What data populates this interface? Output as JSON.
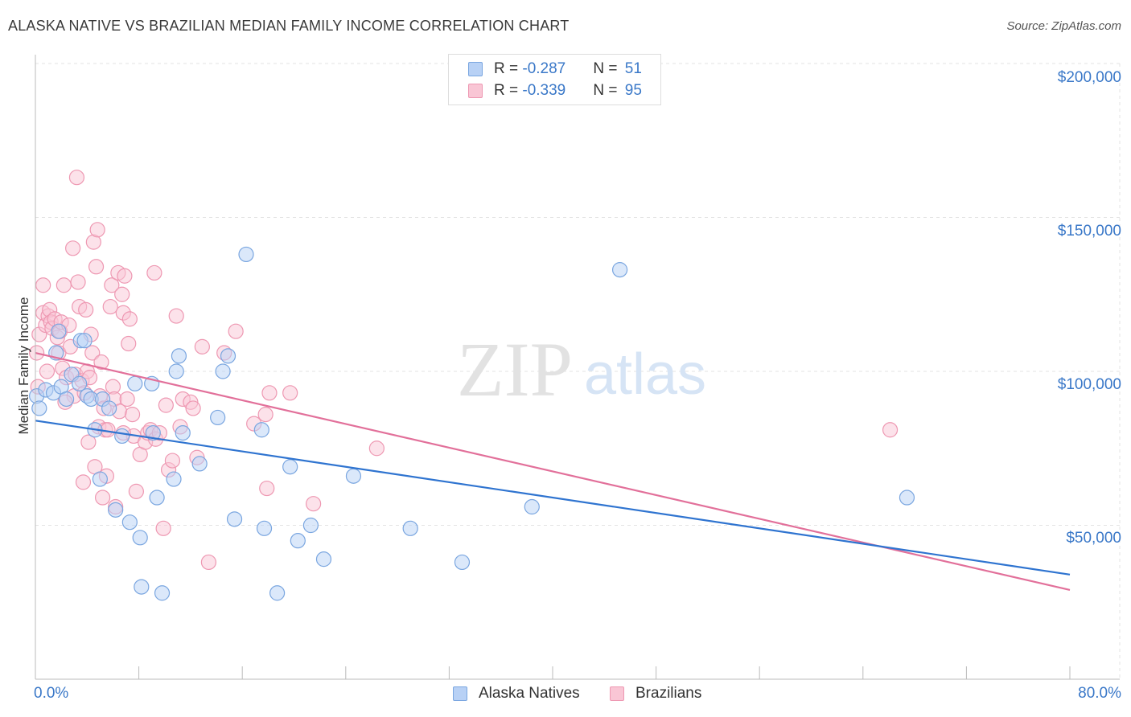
{
  "header": {
    "title": "ALASKA NATIVE VS BRAZILIAN MEDIAN FAMILY INCOME CORRELATION CHART",
    "source": "Source: ZipAtlas.com"
  },
  "watermark": {
    "part1": "ZIP",
    "part2": "atlas"
  },
  "legend": {
    "rows": [
      {
        "r_label": "R = ",
        "r_value": "-0.287",
        "n_label": "N = ",
        "n_value": "51"
      },
      {
        "r_label": "R = ",
        "r_value": "-0.339",
        "n_label": "N = ",
        "n_value": "95"
      }
    ],
    "bottom": [
      "Alaska Natives",
      "Brazilians"
    ]
  },
  "axes": {
    "ylabel": "Median Family Income",
    "yticks": [
      "$200,000",
      "$150,000",
      "$100,000",
      "$50,000"
    ],
    "xticks": [
      "0.0%",
      "80.0%"
    ]
  },
  "colors": {
    "blue_fill": "#b8d1f5",
    "blue_stroke": "#7aa6e0",
    "blue_line": "#2f74d0",
    "pink_fill": "#f9c6d5",
    "pink_stroke": "#ee98b2",
    "pink_line": "#e2709a",
    "tick_text": "#3a78c8",
    "grid": "#e3e3e3"
  },
  "chart_data": {
    "type": "scatter",
    "title": "ALASKA NATIVE VS BRAZILIAN MEDIAN FAMILY INCOME CORRELATION CHART",
    "xlabel": "",
    "ylabel": "Median Family Income",
    "xlim": [
      0,
      80
    ],
    "ylim": [
      0,
      200000
    ],
    "grid": true,
    "legend_position": "top-center",
    "series": [
      {
        "name": "Alaska Natives",
        "color": "#b8d1f5",
        "r": -0.287,
        "n": 51,
        "trend": [
          [
            0,
            84000
          ],
          [
            80,
            34000
          ]
        ],
        "points": [
          [
            0.1,
            92000
          ],
          [
            0.8,
            94000
          ],
          [
            1.4,
            93000
          ],
          [
            1.6,
            106000
          ],
          [
            1.8,
            113000
          ],
          [
            2.0,
            95000
          ],
          [
            2.4,
            91000
          ],
          [
            2.8,
            99000
          ],
          [
            3.4,
            96000
          ],
          [
            3.5,
            110000
          ],
          [
            3.8,
            110000
          ],
          [
            4.0,
            92000
          ],
          [
            4.3,
            91000
          ],
          [
            4.6,
            81000
          ],
          [
            5.0,
            65000
          ],
          [
            5.2,
            91000
          ],
          [
            5.7,
            88000
          ],
          [
            6.2,
            55000
          ],
          [
            6.7,
            79000
          ],
          [
            7.3,
            51000
          ],
          [
            7.7,
            96000
          ],
          [
            8.1,
            46000
          ],
          [
            8.2,
            30000
          ],
          [
            9.0,
            96000
          ],
          [
            9.1,
            80000
          ],
          [
            9.4,
            59000
          ],
          [
            9.8,
            28000
          ],
          [
            10.7,
            65000
          ],
          [
            10.9,
            100000
          ],
          [
            11.1,
            105000
          ],
          [
            11.4,
            80000
          ],
          [
            12.7,
            70000
          ],
          [
            14.1,
            85000
          ],
          [
            14.5,
            100000
          ],
          [
            14.9,
            105000
          ],
          [
            15.4,
            52000
          ],
          [
            16.3,
            138000
          ],
          [
            17.5,
            81000
          ],
          [
            17.7,
            49000
          ],
          [
            18.7,
            28000
          ],
          [
            19.7,
            69000
          ],
          [
            20.3,
            45000
          ],
          [
            21.3,
            50000
          ],
          [
            22.3,
            39000
          ],
          [
            24.6,
            66000
          ],
          [
            29.0,
            49000
          ],
          [
            33.0,
            38000
          ],
          [
            38.4,
            56000
          ],
          [
            45.2,
            133000
          ],
          [
            67.4,
            59000
          ],
          [
            0.3,
            88000
          ]
        ]
      },
      {
        "name": "Brazilians",
        "color": "#f9c6d5",
        "r": -0.339,
        "n": 95,
        "trend": [
          [
            0,
            106000
          ],
          [
            80,
            29000
          ]
        ],
        "points": [
          [
            0.1,
            106000
          ],
          [
            0.2,
            95000
          ],
          [
            0.3,
            112000
          ],
          [
            0.6,
            128000
          ],
          [
            0.6,
            119000
          ],
          [
            0.8,
            115000
          ],
          [
            1.0,
            118000
          ],
          [
            1.1,
            120000
          ],
          [
            1.2,
            116000
          ],
          [
            1.3,
            114000
          ],
          [
            1.5,
            117000
          ],
          [
            1.7,
            111000
          ],
          [
            1.8,
            106000
          ],
          [
            1.9,
            113000
          ],
          [
            2.0,
            116000
          ],
          [
            2.1,
            101000
          ],
          [
            2.2,
            128000
          ],
          [
            2.4,
            98000
          ],
          [
            2.6,
            115000
          ],
          [
            2.7,
            108000
          ],
          [
            2.9,
            140000
          ],
          [
            3.0,
            92000
          ],
          [
            3.1,
            99000
          ],
          [
            3.2,
            163000
          ],
          [
            3.3,
            129000
          ],
          [
            3.4,
            121000
          ],
          [
            3.6,
            97000
          ],
          [
            3.7,
            64000
          ],
          [
            3.8,
            93000
          ],
          [
            3.9,
            120000
          ],
          [
            4.0,
            100000
          ],
          [
            4.1,
            77000
          ],
          [
            4.2,
            98000
          ],
          [
            4.3,
            112000
          ],
          [
            4.4,
            106000
          ],
          [
            4.5,
            142000
          ],
          [
            4.6,
            69000
          ],
          [
            4.7,
            134000
          ],
          [
            4.8,
            146000
          ],
          [
            4.9,
            82000
          ],
          [
            5.0,
            92000
          ],
          [
            5.1,
            103000
          ],
          [
            5.2,
            59000
          ],
          [
            5.3,
            88000
          ],
          [
            5.4,
            81000
          ],
          [
            5.5,
            66000
          ],
          [
            5.6,
            81000
          ],
          [
            5.8,
            121000
          ],
          [
            5.9,
            128000
          ],
          [
            6.0,
            95000
          ],
          [
            6.1,
            91000
          ],
          [
            6.2,
            56000
          ],
          [
            6.4,
            132000
          ],
          [
            6.5,
            87000
          ],
          [
            6.7,
            125000
          ],
          [
            6.8,
            119000
          ],
          [
            6.9,
            131000
          ],
          [
            7.1,
            91000
          ],
          [
            7.2,
            109000
          ],
          [
            7.3,
            117000
          ],
          [
            7.5,
            86000
          ],
          [
            7.6,
            79000
          ],
          [
            7.8,
            61000
          ],
          [
            8.1,
            73000
          ],
          [
            8.5,
            77000
          ],
          [
            8.7,
            80000
          ],
          [
            8.9,
            81000
          ],
          [
            9.2,
            132000
          ],
          [
            9.3,
            78000
          ],
          [
            9.6,
            80000
          ],
          [
            9.9,
            49000
          ],
          [
            10.1,
            89000
          ],
          [
            10.3,
            68000
          ],
          [
            10.6,
            71000
          ],
          [
            10.9,
            118000
          ],
          [
            11.2,
            82000
          ],
          [
            11.4,
            91000
          ],
          [
            12.0,
            90000
          ],
          [
            12.2,
            88000
          ],
          [
            12.5,
            72000
          ],
          [
            12.9,
            108000
          ],
          [
            13.4,
            38000
          ],
          [
            14.6,
            106000
          ],
          [
            15.5,
            113000
          ],
          [
            16.9,
            83000
          ],
          [
            17.8,
            86000
          ],
          [
            17.9,
            62000
          ],
          [
            18.1,
            93000
          ],
          [
            19.7,
            93000
          ],
          [
            21.5,
            57000
          ],
          [
            26.4,
            75000
          ],
          [
            66.1,
            81000
          ],
          [
            0.9,
            100000
          ],
          [
            2.3,
            90000
          ],
          [
            6.8,
            80000
          ]
        ]
      }
    ]
  }
}
